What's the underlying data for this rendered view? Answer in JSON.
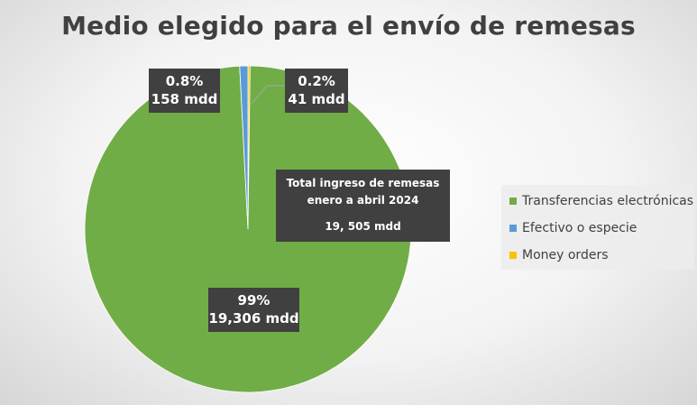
{
  "chart_data": {
    "type": "pie",
    "title": "Medio elegido para el envío de remesas",
    "slices": [
      {
        "name": "Transferencias electrónicas",
        "percent": 99,
        "value": 19306,
        "pct_label": "99%",
        "value_label": "19,306 mdd",
        "color": "#70AD47"
      },
      {
        "name": "Efectivo o especie",
        "percent": 0.8,
        "value": 158,
        "pct_label": "0.8%",
        "value_label": "158 mdd",
        "color": "#5B9BD5"
      },
      {
        "name": "Money orders",
        "percent": 0.2,
        "value": 41,
        "pct_label": "0.2%",
        "value_label": "41 mdd",
        "color": "#FFC000"
      }
    ],
    "annotation": {
      "line1": "Total ingreso de remesas",
      "line2": "enero a abril 2024",
      "amount": "19, 505 mdd"
    },
    "legend": [
      "Transferencias electrónicas",
      "Efectivo o especie",
      "Money orders"
    ],
    "legend_position": "right"
  }
}
